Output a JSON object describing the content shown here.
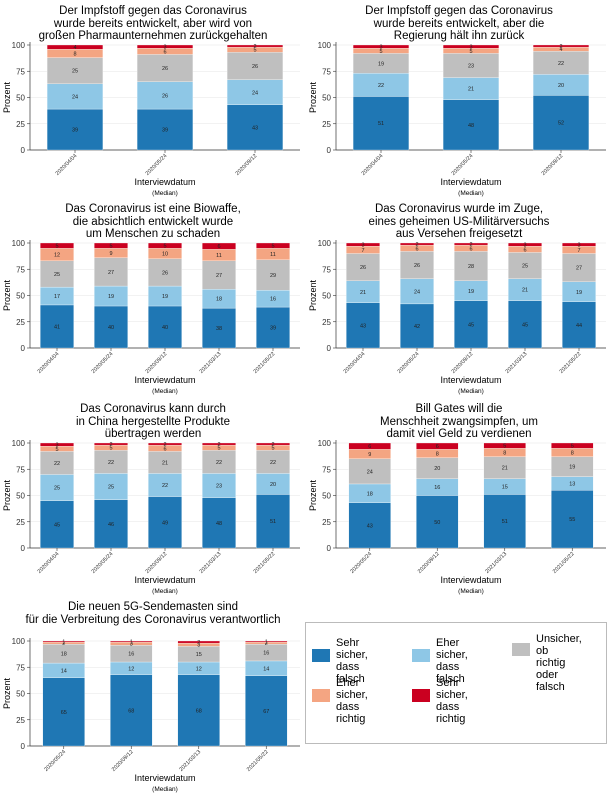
{
  "colors": {
    "sehr_falsch": "#1f77b4",
    "eher_falsch": "#8ec7e6",
    "unsicher": "#bfbfbf",
    "eher_richtig": "#f4a582",
    "sehr_richtig": "#ca0020"
  },
  "legend": {
    "items": [
      {
        "key": "sehr_falsch",
        "label": "Sehr sicher,\ndass falsch"
      },
      {
        "key": "eher_falsch",
        "label": "Eher sicher,\ndass falsch"
      },
      {
        "key": "unsicher",
        "label": "Unsicher, ob\nrichtig oder\nfalsch"
      },
      {
        "key": "eher_richtig",
        "label": "Eher sicher,\ndass richtig"
      },
      {
        "key": "sehr_richtig",
        "label": "Sehr sicher,\ndass richtig"
      }
    ]
  },
  "chart_data": [
    {
      "type": "bar",
      "stacked": true,
      "title": "Der Impfstoff gegen das Coronavirus\nwurde bereits entwickelt, aber wird von\ngroßen Pharmaunternehmen zurückgehalten",
      "xlabel": "Interviewdatum",
      "xlabel_sub": "(Median)",
      "ylabel": "Prozent",
      "ylim": [
        0,
        100
      ],
      "yticks": [
        0,
        25,
        50,
        75,
        100
      ],
      "categories": [
        "2020/04/04",
        "2020/05/24",
        "2020/09/12"
      ],
      "series": [
        {
          "key": "sehr_falsch",
          "values": [
            39,
            39,
            43
          ]
        },
        {
          "key": "eher_falsch",
          "values": [
            24,
            26,
            24
          ]
        },
        {
          "key": "unsicher",
          "values": [
            25,
            26,
            26
          ]
        },
        {
          "key": "eher_richtig",
          "values": [
            8,
            6,
            5
          ]
        },
        {
          "key": "sehr_richtig",
          "values": [
            4,
            3,
            2
          ]
        }
      ],
      "labels": [
        [
          "39",
          "24",
          "25",
          "8",
          "4"
        ],
        [
          "39",
          "26",
          "26",
          "6",
          "3"
        ],
        [
          "43",
          "24",
          "26",
          "5",
          "2"
        ]
      ]
    },
    {
      "type": "bar",
      "stacked": true,
      "title": "Der Impfstoff gegen das Coronavirus\nwurde bereits entwickelt, aber die\nRegierung hält ihn zurück",
      "xlabel": "Interviewdatum",
      "xlabel_sub": "(Median)",
      "ylabel": "Prozent",
      "ylim": [
        0,
        100
      ],
      "yticks": [
        0,
        25,
        50,
        75,
        100
      ],
      "categories": [
        "2020/04/04",
        "2020/05/24",
        "2020/09/12"
      ],
      "series": [
        {
          "key": "sehr_falsch",
          "values": [
            51,
            48,
            52
          ]
        },
        {
          "key": "eher_falsch",
          "values": [
            22,
            21,
            20
          ]
        },
        {
          "key": "unsicher",
          "values": [
            19,
            23,
            22
          ]
        },
        {
          "key": "eher_richtig",
          "values": [
            5,
            5,
            4
          ]
        },
        {
          "key": "sehr_richtig",
          "values": [
            3,
            3,
            2
          ]
        }
      ],
      "labels": [
        [
          "51",
          "22",
          "19",
          "5",
          "3"
        ],
        [
          "48",
          "21",
          "23",
          "5",
          "3"
        ],
        [
          "52",
          "20",
          "22",
          "4",
          "2"
        ]
      ]
    },
    {
      "type": "bar",
      "stacked": true,
      "title": "Das Coronavirus ist eine Biowaffe,\ndie absichtlich entwickelt wurde\num Menschen zu schaden",
      "xlabel": "Interviewdatum",
      "xlabel_sub": "(Median)",
      "ylabel": "Prozent",
      "ylim": [
        0,
        100
      ],
      "yticks": [
        0,
        25,
        50,
        75,
        100
      ],
      "categories": [
        "2020/04/04",
        "2020/05/24",
        "2020/09/12",
        "2021/03/13",
        "2021/05/22"
      ],
      "series": [
        {
          "key": "sehr_falsch",
          "values": [
            41,
            40,
            40,
            38,
            39
          ]
        },
        {
          "key": "eher_falsch",
          "values": [
            17,
            19,
            19,
            18,
            16
          ]
        },
        {
          "key": "unsicher",
          "values": [
            25,
            27,
            26,
            27,
            29
          ]
        },
        {
          "key": "eher_richtig",
          "values": [
            12,
            9,
            10,
            11,
            11
          ]
        },
        {
          "key": "sehr_richtig",
          "values": [
            5,
            5,
            5,
            6,
            5
          ]
        }
      ],
      "labels": [
        [
          "41",
          "17",
          "25",
          "12",
          "5"
        ],
        [
          "40",
          "19",
          "27",
          "9",
          "5"
        ],
        [
          "40",
          "19",
          "26",
          "10",
          "5"
        ],
        [
          "38",
          "18",
          "27",
          "11",
          "6"
        ],
        [
          "39",
          "16",
          "29",
          "11",
          "5"
        ]
      ]
    },
    {
      "type": "bar",
      "stacked": true,
      "title": "Das Coronavirus wurde im Zuge,\neines geheimen US-Militärversuchs\naus Versehen freigesetzt",
      "xlabel": "Interviewdatum",
      "xlabel_sub": "(Median)",
      "ylabel": "Prozent",
      "ylim": [
        0,
        100
      ],
      "yticks": [
        0,
        25,
        50,
        75,
        100
      ],
      "categories": [
        "2020/04/04",
        "2020/05/24",
        "2020/09/12",
        "2021/03/13",
        "2021/05/22"
      ],
      "series": [
        {
          "key": "sehr_falsch",
          "values": [
            43,
            42,
            45,
            45,
            44
          ]
        },
        {
          "key": "eher_falsch",
          "values": [
            21,
            24,
            19,
            21,
            19
          ]
        },
        {
          "key": "unsicher",
          "values": [
            26,
            26,
            28,
            25,
            27
          ]
        },
        {
          "key": "eher_richtig",
          "values": [
            7,
            6,
            6,
            6,
            7
          ]
        },
        {
          "key": "sehr_richtig",
          "values": [
            3,
            2,
            2,
            3,
            3
          ]
        }
      ],
      "labels": [
        [
          "43",
          "21",
          "26",
          "7",
          "3"
        ],
        [
          "42",
          "24",
          "26",
          "6",
          "2"
        ],
        [
          "45",
          "19",
          "28",
          "6",
          "2"
        ],
        [
          "45",
          "21",
          "25",
          "6",
          "3"
        ],
        [
          "44",
          "19",
          "27",
          "7",
          "3"
        ]
      ]
    },
    {
      "type": "bar",
      "stacked": true,
      "title": "Das Coronavirus kann durch\nin China hergestellte Produkte\nübertragen werden",
      "xlabel": "Interviewdatum",
      "xlabel_sub": "(Median)",
      "ylabel": "Prozent",
      "ylim": [
        0,
        100
      ],
      "yticks": [
        0,
        25,
        50,
        75,
        100
      ],
      "categories": [
        "2020/04/04",
        "2020/05/24",
        "2020/09/12",
        "2021/03/13",
        "2021/05/22"
      ],
      "series": [
        {
          "key": "sehr_falsch",
          "values": [
            45,
            46,
            49,
            48,
            51
          ]
        },
        {
          "key": "eher_falsch",
          "values": [
            25,
            25,
            22,
            23,
            20
          ]
        },
        {
          "key": "unsicher",
          "values": [
            22,
            22,
            21,
            22,
            22
          ]
        },
        {
          "key": "eher_richtig",
          "values": [
            5,
            5,
            6,
            5,
            5
          ]
        },
        {
          "key": "sehr_richtig",
          "values": [
            3,
            2,
            2,
            2,
            2
          ]
        }
      ],
      "labels": [
        [
          "45",
          "25",
          "22",
          "5",
          "3"
        ],
        [
          "46",
          "25",
          "22",
          "5",
          "2"
        ],
        [
          "49",
          "22",
          "21",
          "6",
          "2"
        ],
        [
          "48",
          "23",
          "22",
          "5",
          "2"
        ],
        [
          "51",
          "20",
          "22",
          "5",
          "2"
        ]
      ]
    },
    {
      "type": "bar",
      "stacked": true,
      "title": "Bill Gates will die\nMenschheit zwangsimpfen, um\ndamit viel Geld zu verdienen",
      "xlabel": "Interviewdatum",
      "xlabel_sub": "(Median)",
      "ylabel": "Prozent",
      "ylim": [
        0,
        100
      ],
      "yticks": [
        0,
        25,
        50,
        75,
        100
      ],
      "categories": [
        "2020/05/24",
        "2020/09/12",
        "2021/03/13",
        "2021/05/22"
      ],
      "series": [
        {
          "key": "sehr_falsch",
          "values": [
            43,
            50,
            51,
            55
          ]
        },
        {
          "key": "eher_falsch",
          "values": [
            18,
            16,
            15,
            13
          ]
        },
        {
          "key": "unsicher",
          "values": [
            24,
            20,
            21,
            19
          ]
        },
        {
          "key": "eher_richtig",
          "values": [
            9,
            8,
            8,
            8
          ]
        },
        {
          "key": "sehr_richtig",
          "values": [
            6,
            6,
            5,
            5
          ]
        }
      ],
      "labels": [
        [
          "43",
          "18",
          "24",
          "9",
          "6"
        ],
        [
          "50",
          "16",
          "20",
          "8",
          "6"
        ],
        [
          "51",
          "15",
          "21",
          "8",
          "5"
        ],
        [
          "55",
          "13",
          "19",
          "8",
          "5"
        ]
      ]
    },
    {
      "type": "bar",
      "stacked": true,
      "title": "Die neuen 5G-Sendemasten sind\nfür die Verbreitung des Coronavirus verantwortlich",
      "xlabel": "Interviewdatum",
      "xlabel_sub": "(Median)",
      "ylabel": "Prozent",
      "ylim": [
        0,
        100
      ],
      "yticks": [
        0,
        25,
        50,
        75,
        100
      ],
      "categories": [
        "2020/05/24",
        "2020/09/12",
        "2021/03/13",
        "2021/05/22"
      ],
      "series": [
        {
          "key": "sehr_falsch",
          "values": [
            65,
            68,
            68,
            67
          ]
        },
        {
          "key": "eher_falsch",
          "values": [
            14,
            12,
            12,
            14
          ]
        },
        {
          "key": "unsicher",
          "values": [
            18,
            16,
            15,
            16
          ]
        },
        {
          "key": "eher_richtig",
          "values": [
            2,
            3,
            3,
            2
          ]
        },
        {
          "key": "sehr_richtig",
          "values": [
            1,
            1,
            2,
            1
          ]
        }
      ],
      "labels": [
        [
          "65",
          "14",
          "18",
          "2",
          "1"
        ],
        [
          "68",
          "12",
          "16",
          "3",
          "1"
        ],
        [
          "68",
          "12",
          "15",
          "3",
          "2"
        ],
        [
          "67",
          "14",
          "16",
          "2",
          "1"
        ]
      ]
    }
  ]
}
